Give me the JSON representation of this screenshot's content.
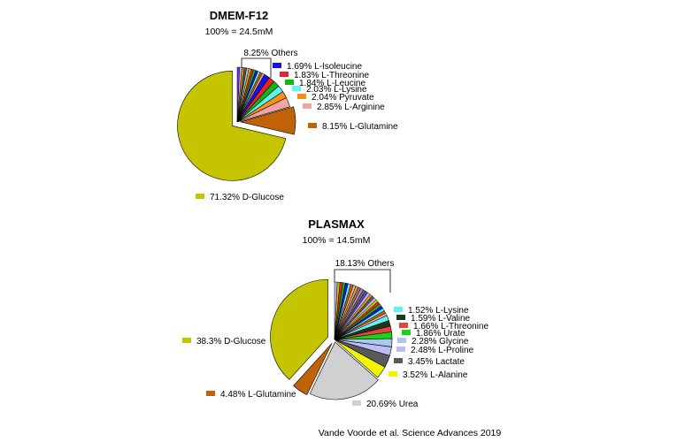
{
  "chart_data": [
    {
      "type": "pie",
      "title": "DMEM-F12",
      "subtitle": "100% = 24.5mM",
      "slices": [
        {
          "label": "D-Glucose",
          "pct_text": "71.32%",
          "value": 71.32,
          "color": "#c4c400",
          "labeled": true
        },
        {
          "label": "L-Glutamine",
          "pct_text": "8.15%",
          "value": 8.15,
          "color": "#c0620a",
          "labeled": true
        },
        {
          "label": "L-Arginine",
          "pct_text": "2.85%",
          "value": 2.85,
          "color": "#f4a3a3",
          "labeled": true
        },
        {
          "label": "Pyruvate",
          "pct_text": "2.04%",
          "value": 2.04,
          "color": "#f39019",
          "labeled": true
        },
        {
          "label": "L-Lysine",
          "pct_text": "2.03%",
          "value": 2.03,
          "color": "#5ff3f3",
          "labeled": true
        },
        {
          "label": "L-Leucine",
          "pct_text": "1.84%",
          "value": 1.84,
          "color": "#12b812",
          "labeled": true
        },
        {
          "label": "L-Threonine",
          "pct_text": "1.83%",
          "value": 1.83,
          "color": "#e8242a",
          "labeled": true
        },
        {
          "label": "L-Isoleucine",
          "pct_text": "1.69%",
          "value": 1.69,
          "color": "#1414e6",
          "labeled": true
        },
        {
          "label": "Others",
          "pct_text": "8.25%",
          "value": 8.25,
          "color": "#999999",
          "labeled": false,
          "is_others": true
        }
      ]
    },
    {
      "type": "pie",
      "title": "PLASMAX",
      "subtitle": "100% = 14.5mM",
      "slices": [
        {
          "label": "D-Glucose",
          "pct_text": "38.3%",
          "value": 38.3,
          "color": "#c4c400",
          "labeled": true
        },
        {
          "label": "L-Glutamine",
          "pct_text": "4.48%",
          "value": 4.48,
          "color": "#c0620a",
          "labeled": true
        },
        {
          "label": "Urea",
          "pct_text": "20.69%",
          "value": 20.69,
          "color": "#d0d0d0",
          "labeled": true
        },
        {
          "label": "L-Alanine",
          "pct_text": "3.52%",
          "value": 3.52,
          "color": "#f4f400",
          "labeled": true
        },
        {
          "label": "Lactate",
          "pct_text": "3.45%",
          "value": 3.45,
          "color": "#5a5a5a",
          "labeled": true
        },
        {
          "label": "L-Proline",
          "pct_text": "2.48%",
          "value": 2.48,
          "color": "#bdbdf4",
          "labeled": true
        },
        {
          "label": "Glycine",
          "pct_text": "2.28%",
          "value": 2.28,
          "color": "#a9c8ef",
          "labeled": true
        },
        {
          "label": "Urate",
          "pct_text": "1.86%",
          "value": 1.86,
          "color": "#12d812",
          "labeled": true
        },
        {
          "label": "L-Threonine",
          "pct_text": "1.66%",
          "value": 1.66,
          "color": "#e84040",
          "labeled": true
        },
        {
          "label": "L-Valine",
          "pct_text": "1.59%",
          "value": 1.59,
          "color": "#1a3a1a",
          "labeled": true
        },
        {
          "label": "L-Lysine",
          "pct_text": "1.52%",
          "value": 1.52,
          "color": "#5ff3f3",
          "labeled": true
        },
        {
          "label": "Others",
          "pct_text": "18.13%",
          "value": 18.13,
          "color": "#999999",
          "labeled": false,
          "is_others": true
        }
      ]
    }
  ],
  "credit": "Vande Voorde et al. Science Advances 2019"
}
